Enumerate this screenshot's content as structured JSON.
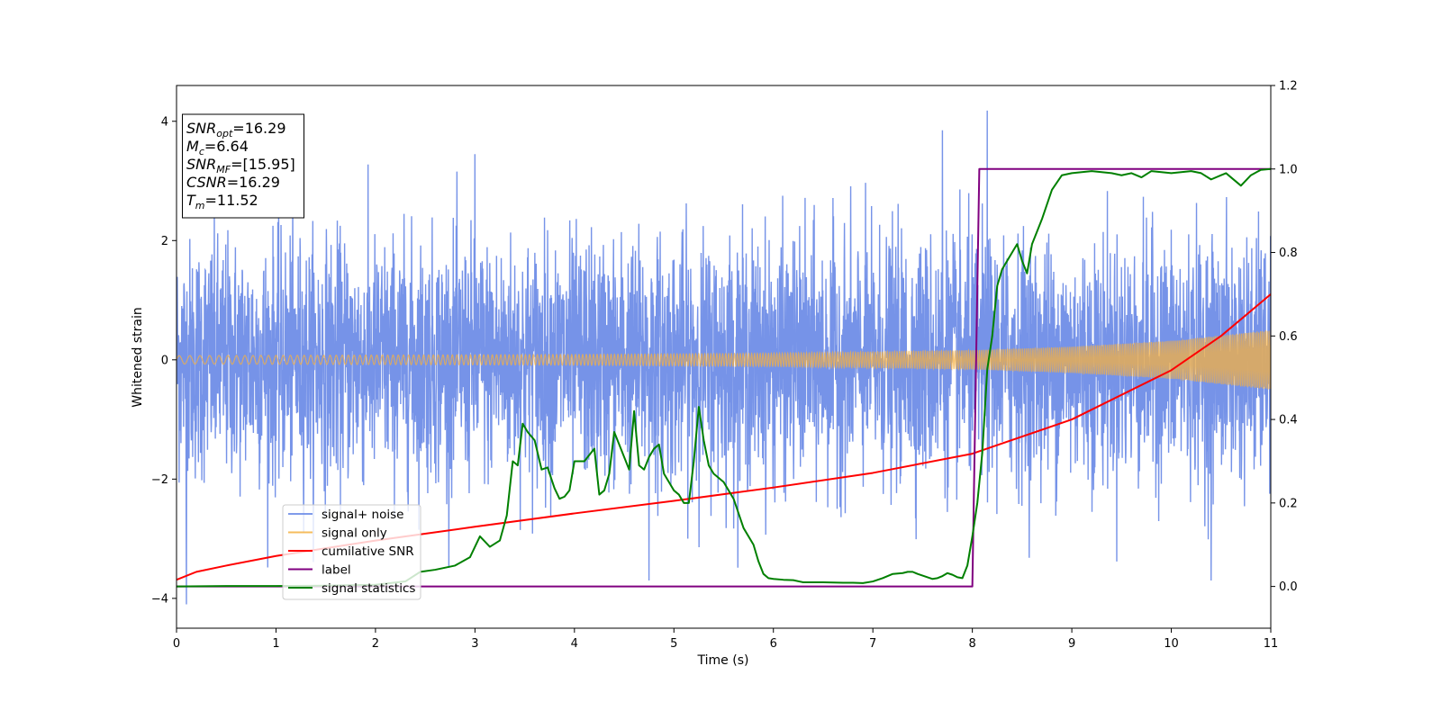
{
  "chart_data": {
    "type": "line",
    "xlabel": "Time (s)",
    "ylabel": "Whitened strain",
    "xlim": [
      0,
      11
    ],
    "ylim_left": [
      -4.5,
      4.6
    ],
    "ylim_right": [
      -0.1,
      1.2
    ],
    "x_ticks": [
      "0",
      "1",
      "2",
      "3",
      "4",
      "5",
      "6",
      "7",
      "8",
      "9",
      "10",
      "11"
    ],
    "y_ticks_left": [
      "4",
      "2",
      "0",
      "−2",
      "−4"
    ],
    "y_ticks_left_values": [
      4,
      2,
      0,
      -2,
      -4
    ],
    "y_ticks_right": [
      "1.2",
      "1.0",
      "0.8",
      "0.6",
      "0.4",
      "0.2",
      "0.0"
    ],
    "y_ticks_right_values": [
      1.2,
      1.0,
      0.8,
      0.6,
      0.4,
      0.2,
      0.0
    ],
    "grid": false,
    "legend_position": "lower-left",
    "annotation": {
      "lines": [
        {
          "var": "SNR",
          "sub": "opt",
          "value": "=16.29"
        },
        {
          "var": "M",
          "sub": "c",
          "value": "=6.64"
        },
        {
          "var": "SNR",
          "sub": "MF",
          "value": "=[15.95]"
        },
        {
          "var": "CSNR",
          "sub": "",
          "value": "=16.29"
        },
        {
          "var": "T",
          "sub": "m",
          "value": "=11.52"
        }
      ]
    },
    "series": [
      {
        "name": "signal+ noise",
        "axis": "left",
        "color": "#6a8ae6",
        "kind": "noise",
        "typical_std": 1.0,
        "min": -4.1,
        "max": 4.18,
        "notable_spikes": [
          {
            "x": 0.1,
            "y": -4.1
          },
          {
            "x": 3.0,
            "y": 3.45
          },
          {
            "x": 4.75,
            "y": -3.7
          },
          {
            "x": 7.7,
            "y": 3.85
          },
          {
            "x": 8.15,
            "y": 4.18
          },
          {
            "x": 10.4,
            "y": -3.7
          }
        ]
      },
      {
        "name": "signal only",
        "axis": "left",
        "color": "#f5b041",
        "kind": "chirp",
        "amplitude": [
          [
            0,
            0.07
          ],
          [
            2,
            0.08
          ],
          [
            4,
            0.09
          ],
          [
            6,
            0.11
          ],
          [
            8,
            0.16
          ],
          [
            9,
            0.22
          ],
          [
            10,
            0.32
          ],
          [
            11,
            0.5
          ]
        ]
      },
      {
        "name": "cumilative SNR",
        "axis": "right",
        "color": "#ff0000",
        "x": [
          0,
          0.2,
          0.5,
          1,
          2,
          3,
          4,
          5,
          6,
          7,
          8,
          9,
          10,
          10.5,
          11
        ],
        "y": [
          0.016,
          0.035,
          0.05,
          0.073,
          0.11,
          0.143,
          0.175,
          0.205,
          0.237,
          0.272,
          0.318,
          0.4,
          0.518,
          0.6,
          0.7
        ]
      },
      {
        "name": "label",
        "axis": "right",
        "color": "#800080",
        "x": [
          0,
          8.0,
          8.07,
          11
        ],
        "y": [
          0,
          0,
          1,
          1
        ]
      },
      {
        "name": "signal statistics",
        "axis": "right",
        "color": "#008000",
        "x": [
          0,
          0.5,
          1,
          1.5,
          2,
          2.3,
          2.45,
          2.6,
          2.8,
          2.95,
          3.05,
          3.15,
          3.25,
          3.32,
          3.38,
          3.43,
          3.48,
          3.53,
          3.6,
          3.67,
          3.73,
          3.8,
          3.85,
          3.9,
          3.95,
          4.0,
          4.05,
          4.1,
          4.2,
          4.25,
          4.3,
          4.35,
          4.4,
          4.45,
          4.5,
          4.55,
          4.6,
          4.65,
          4.7,
          4.75,
          4.8,
          4.85,
          4.9,
          4.95,
          5.0,
          5.05,
          5.1,
          5.15,
          5.2,
          5.25,
          5.3,
          5.35,
          5.4,
          5.45,
          5.5,
          5.55,
          5.6,
          5.7,
          5.8,
          5.85,
          5.9,
          5.95,
          6.0,
          6.1,
          6.2,
          6.3,
          6.5,
          6.7,
          6.8,
          6.9,
          7.0,
          7.1,
          7.2,
          7.3,
          7.35,
          7.4,
          7.45,
          7.5,
          7.55,
          7.6,
          7.65,
          7.7,
          7.75,
          7.8,
          7.85,
          7.9,
          7.95,
          8.0,
          8.05,
          8.1,
          8.15,
          8.2,
          8.25,
          8.3,
          8.35,
          8.4,
          8.45,
          8.5,
          8.55,
          8.6,
          8.7,
          8.8,
          8.9,
          9.0,
          9.2,
          9.4,
          9.5,
          9.6,
          9.7,
          9.8,
          10.0,
          10.2,
          10.3,
          10.4,
          10.5,
          10.55,
          10.6,
          10.7,
          10.8,
          10.9,
          11.0
        ],
        "y": [
          0.0,
          0.001,
          0.001,
          0.002,
          0.004,
          0.012,
          0.035,
          0.04,
          0.05,
          0.07,
          0.12,
          0.095,
          0.11,
          0.17,
          0.3,
          0.29,
          0.39,
          0.37,
          0.35,
          0.28,
          0.285,
          0.235,
          0.21,
          0.215,
          0.23,
          0.3,
          0.3,
          0.3,
          0.33,
          0.22,
          0.23,
          0.27,
          0.37,
          0.34,
          0.31,
          0.28,
          0.42,
          0.29,
          0.28,
          0.31,
          0.33,
          0.34,
          0.27,
          0.25,
          0.23,
          0.22,
          0.2,
          0.2,
          0.3,
          0.43,
          0.35,
          0.29,
          0.27,
          0.26,
          0.25,
          0.23,
          0.21,
          0.14,
          0.1,
          0.06,
          0.03,
          0.02,
          0.018,
          0.016,
          0.015,
          0.01,
          0.01,
          0.009,
          0.009,
          0.008,
          0.012,
          0.02,
          0.03,
          0.032,
          0.035,
          0.035,
          0.03,
          0.026,
          0.022,
          0.018,
          0.02,
          0.025,
          0.032,
          0.028,
          0.022,
          0.02,
          0.05,
          0.12,
          0.2,
          0.32,
          0.52,
          0.6,
          0.72,
          0.76,
          0.78,
          0.8,
          0.82,
          0.78,
          0.75,
          0.82,
          0.88,
          0.95,
          0.985,
          0.99,
          0.995,
          0.99,
          0.985,
          0.99,
          0.98,
          0.995,
          0.99,
          0.995,
          0.99,
          0.975,
          0.985,
          0.99,
          0.98,
          0.96,
          0.985,
          0.998,
          1.0
        ]
      }
    ]
  }
}
